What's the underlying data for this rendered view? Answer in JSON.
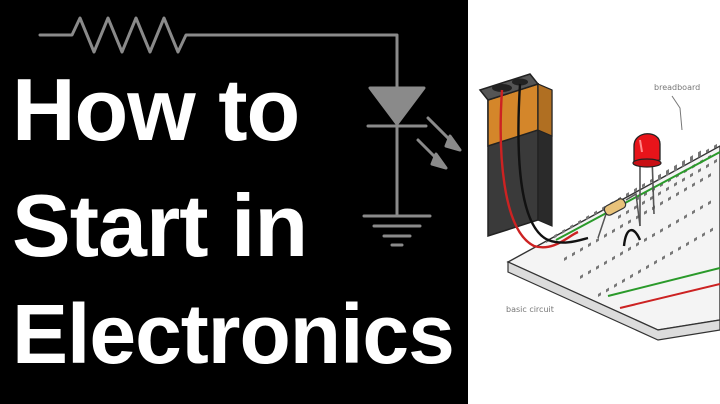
{
  "title": {
    "line1": "How to",
    "line2": "Start in",
    "line3": "Electronics"
  },
  "illustration": {
    "breadboard_label": "breadboard",
    "circuit_label": "basic circuit"
  },
  "colors": {
    "background": "#000000",
    "title_text": "#ffffff",
    "schematic_line": "#8a8a8a",
    "battery_top": "#d4862a",
    "led_red": "#e8141a",
    "wire_red": "#cc2222",
    "wire_green": "#2a9a2a"
  },
  "icons": [
    "resistor-symbol-icon",
    "led-diode-symbol-icon",
    "ground-symbol-icon",
    "battery-9v-icon",
    "led-icon",
    "resistor-icon",
    "breadboard-icon"
  ]
}
